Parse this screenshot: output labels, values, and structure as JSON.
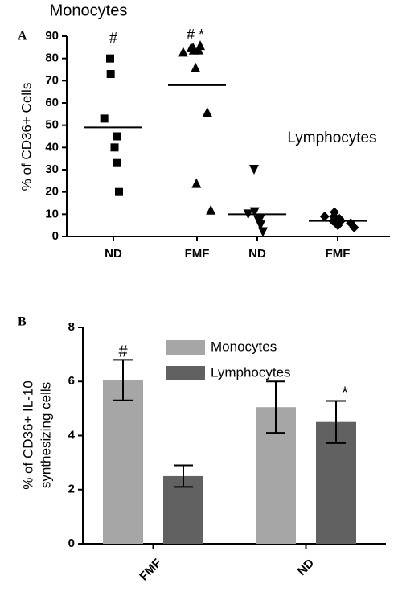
{
  "chart_data": [
    {
      "type": "strip",
      "panel_label": "A",
      "ylabel": "% of CD36+ Cells",
      "categories": [
        "ND",
        "FMF",
        "ND",
        "FMF"
      ],
      "markers": [
        "square",
        "triangle",
        "triangle-down",
        "diamond"
      ],
      "color": "#000000",
      "values": [
        [
          80,
          73,
          53,
          45,
          40,
          33,
          20
        ],
        [
          84,
          85,
          83,
          84,
          85,
          86,
          76,
          56,
          24,
          12,
          84
        ],
        [
          30,
          11,
          10,
          8,
          7,
          5,
          2
        ],
        [
          11,
          9,
          9,
          8,
          7,
          7,
          6,
          6,
          5,
          4
        ]
      ],
      "means": [
        49,
        68,
        10,
        7
      ],
      "ylim": [
        0,
        90
      ],
      "yticks": [
        0,
        10,
        20,
        30,
        40,
        50,
        60,
        70,
        80,
        90
      ],
      "annotations": [
        "Monocytes",
        "Lymphocytes",
        "#",
        "# *"
      ]
    },
    {
      "type": "bar",
      "panel_label": "B",
      "ylabel": [
        "% of CD36+ IL-10",
        "synthesizing cells"
      ],
      "categories": [
        "FMF",
        "ND"
      ],
      "series": [
        {
          "name": "Monocytes",
          "color": "#a6a6a6",
          "values": [
            6.05,
            5.05
          ],
          "errors": [
            0.75,
            0.95
          ]
        },
        {
          "name": "Lymphocytes",
          "color": "#616161",
          "values": [
            2.5,
            4.5
          ],
          "errors": [
            0.4,
            0.78
          ]
        }
      ],
      "ylim": [
        0,
        8
      ],
      "yticks": [
        0,
        2,
        4,
        6,
        8
      ],
      "annotations": [
        "#",
        "*"
      ]
    }
  ]
}
